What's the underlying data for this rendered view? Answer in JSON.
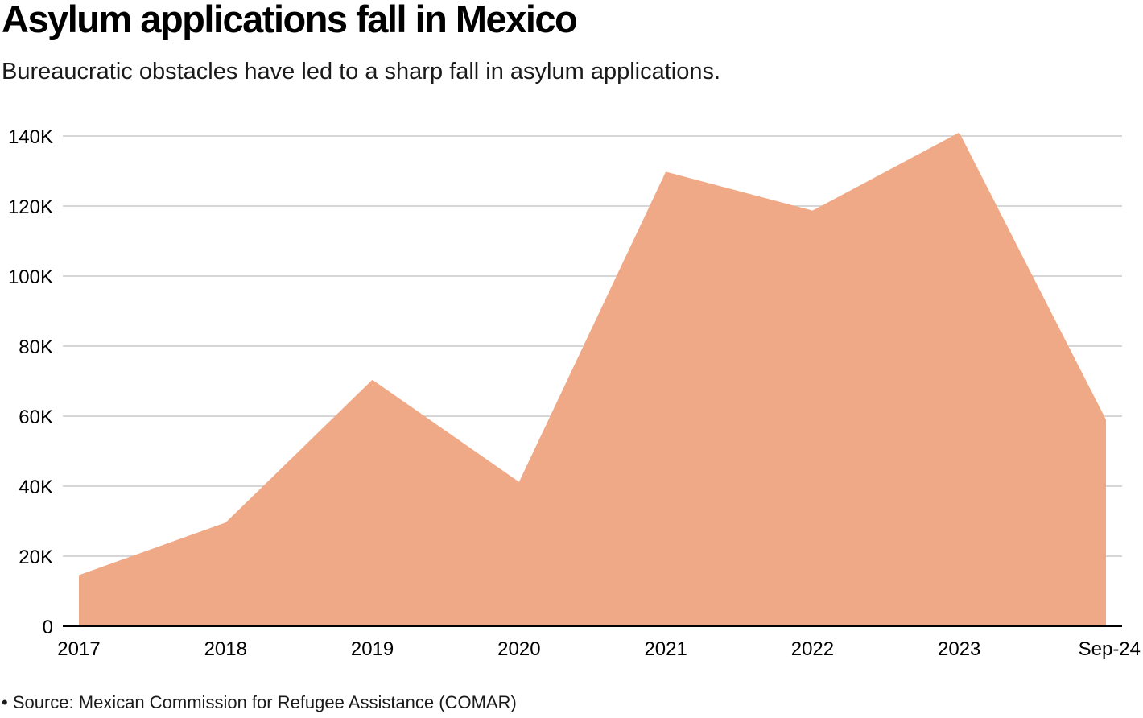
{
  "title": "Asylum applications fall in Mexico",
  "subtitle": "Bureaucratic obstacles have led to a sharp fall in asylum applications.",
  "source": "• Source: Mexican Commission for Refugee Assistance (COMAR)",
  "colors": {
    "area": "#f0a986",
    "grid": "#c8c8c8",
    "axis": "#000000"
  },
  "chart_data": {
    "type": "area",
    "title": "Asylum applications fall in Mexico",
    "xlabel": "",
    "ylabel": "",
    "categories": [
      "2017",
      "2018",
      "2019",
      "2020",
      "2021",
      "2022",
      "2023",
      "Sep-24"
    ],
    "series": [
      {
        "name": "Asylum applications",
        "values": [
          14600,
          29600,
          70400,
          41200,
          129800,
          118700,
          141000,
          59000
        ]
      }
    ],
    "ylim": [
      0,
      140000
    ],
    "yticks": [
      0,
      20000,
      40000,
      60000,
      80000,
      100000,
      120000,
      140000
    ],
    "ytick_labels": [
      "0",
      "20K",
      "40K",
      "60K",
      "80K",
      "100K",
      "120K",
      "140K"
    ],
    "grid": true
  }
}
